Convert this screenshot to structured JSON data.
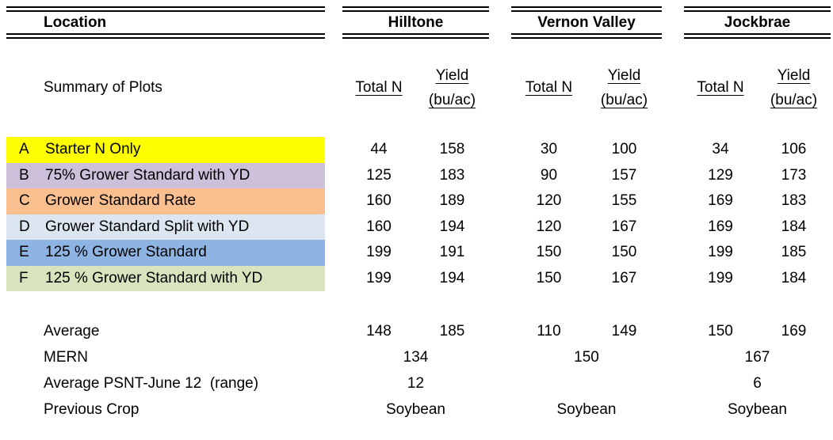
{
  "page": {
    "header": {
      "location": "Location",
      "locations": [
        "Hilltone",
        "Vernon Valley",
        "Jockbrae"
      ]
    },
    "subheader": {
      "summary": "Summary of Plots",
      "total_n": "Total N",
      "yield_line1": "Yield",
      "yield_line2": "(bu/ac)"
    },
    "plots": [
      {
        "letter": "A",
        "label": "Starter N Only",
        "color": "#FFFF00",
        "values": [
          "44",
          "158",
          "30",
          "100",
          "34",
          "106"
        ]
      },
      {
        "letter": "B",
        "label": "75% Grower Standard with YD",
        "color": "#CCC0DA",
        "values": [
          "125",
          "183",
          "90",
          "157",
          "129",
          "173"
        ]
      },
      {
        "letter": "C",
        "label": "Grower Standard Rate",
        "color": "#FABF8F",
        "values": [
          "160",
          "189",
          "120",
          "155",
          "169",
          "183"
        ]
      },
      {
        "letter": "D",
        "label": "Grower Standard Split with YD",
        "color": "#DCE6F1",
        "values": [
          "160",
          "194",
          "120",
          "167",
          "169",
          "184"
        ]
      },
      {
        "letter": "E",
        "label": "125 % Grower Standard",
        "color": "#8DB4E2",
        "values": [
          "199",
          "191",
          "150",
          "150",
          "199",
          "185"
        ]
      },
      {
        "letter": "F",
        "label": "125 % Grower Standard with YD",
        "color": "#D7E4BD",
        "values": [
          "199",
          "194",
          "150",
          "167",
          "199",
          "184"
        ]
      }
    ],
    "summary_rows": {
      "average": {
        "label": "Average",
        "values": [
          "148",
          "185",
          "110",
          "149",
          "150",
          "169"
        ]
      },
      "mern": {
        "label": "MERN",
        "values": [
          "134",
          "150",
          "167"
        ]
      },
      "psnt": {
        "label": "Average PSNT-June 12  (range)",
        "values": [
          "12",
          "",
          "6"
        ]
      },
      "previous_crop": {
        "label": "Previous Crop",
        "values": [
          "Soybean",
          "Soybean",
          "Soybean"
        ]
      }
    }
  }
}
